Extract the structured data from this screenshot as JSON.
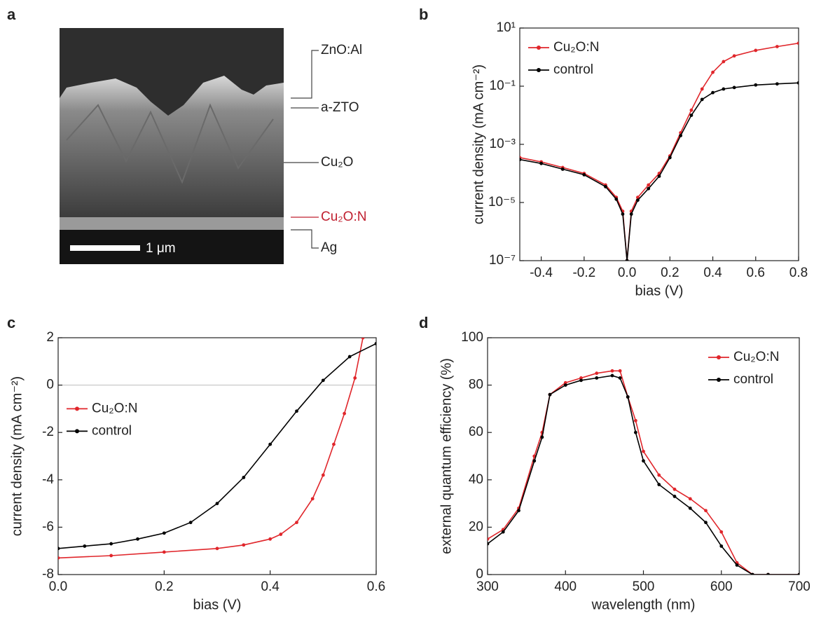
{
  "image_panel": {
    "label": "a",
    "scale_bar": "1 μm",
    "layers": [
      "ZnO:Al",
      "a-ZTO",
      "Cu₂O",
      "Cu₂O:N",
      "Ag"
    ]
  },
  "chart_data": [
    {
      "type": "line",
      "panel_label": "b",
      "x_label": "bias (V)",
      "y_label": "current density (mA cm⁻²)",
      "log_y": true,
      "legend": "upper left",
      "xlim": [
        -0.5,
        0.8
      ],
      "xticks": [
        -0.4,
        -0.2,
        {
          "value": 0,
          "label": "0.0"
        },
        0.2,
        0.4,
        0.6,
        0.8
      ],
      "ylim": [
        1e-07,
        10
      ],
      "yticks": [
        {
          "value": 10,
          "label": "10¹"
        },
        {
          "value": 0.1,
          "label": "10⁻¹"
        },
        {
          "value": 0.001,
          "label": "10⁻³"
        },
        {
          "value": 1e-05,
          "label": "10⁻⁵"
        },
        {
          "value": 1e-07,
          "label": "10⁻⁷"
        }
      ],
      "series": [
        {
          "name": "Cu₂O:N",
          "color": "#e0262b",
          "x": [
            -0.5,
            -0.4,
            -0.3,
            -0.2,
            -0.1,
            -0.05,
            -0.02,
            0,
            0.02,
            0.05,
            0.1,
            0.15,
            0.2,
            0.25,
            0.3,
            0.35,
            0.4,
            0.45,
            0.5,
            0.6,
            0.7,
            0.8
          ],
          "values": [
            0.00035,
            0.00025,
            0.00016,
            0.0001,
            4e-05,
            1.5e-05,
            5e-06,
            1e-07,
            5e-06,
            1.5e-05,
            4e-05,
            0.0001,
            0.0004,
            0.0025,
            0.015,
            0.08,
            0.3,
            0.7,
            1.1,
            1.7,
            2.3,
            3
          ]
        },
        {
          "name": "control",
          "color": "#000000",
          "x": [
            -0.5,
            -0.4,
            -0.3,
            -0.2,
            -0.1,
            -0.05,
            -0.02,
            0,
            0.02,
            0.05,
            0.1,
            0.15,
            0.2,
            0.25,
            0.3,
            0.35,
            0.4,
            0.45,
            0.5,
            0.6,
            0.7,
            0.8
          ],
          "values": [
            0.0003,
            0.00022,
            0.00014,
            9e-05,
            3.5e-05,
            1.3e-05,
            4e-06,
            1e-07,
            4e-06,
            1.2e-05,
            3e-05,
            8e-05,
            0.00035,
            0.002,
            0.01,
            0.035,
            0.06,
            0.08,
            0.09,
            0.11,
            0.12,
            0.13
          ]
        }
      ]
    },
    {
      "type": "line",
      "panel_label": "c",
      "x_label": "bias (V)",
      "y_label": "current density (mA cm⁻²)",
      "legend": "center left",
      "zero_line": true,
      "xlim": [
        0,
        0.6
      ],
      "xticks": [
        {
          "value": 0,
          "label": "0.0"
        },
        0.2,
        0.4,
        0.6
      ],
      "ylim": [
        -8,
        2
      ],
      "yticks": [
        -8,
        -6,
        -4,
        -2,
        0,
        2
      ],
      "series": [
        {
          "name": "Cu₂O:N",
          "color": "#e0262b",
          "x": [
            0,
            0.1,
            0.2,
            0.3,
            0.35,
            0.4,
            0.42,
            0.45,
            0.48,
            0.5,
            0.52,
            0.54,
            0.56,
            0.575
          ],
          "values": [
            -7.3,
            -7.2,
            -7.05,
            -6.9,
            -6.75,
            -6.5,
            -6.3,
            -5.8,
            -4.8,
            -3.8,
            -2.5,
            -1.2,
            0.3,
            2
          ]
        },
        {
          "name": "control",
          "color": "#000000",
          "x": [
            0,
            0.05,
            0.1,
            0.15,
            0.2,
            0.25,
            0.3,
            0.35,
            0.4,
            0.45,
            0.5,
            0.55,
            0.6
          ],
          "values": [
            -6.9,
            -6.8,
            -6.7,
            -6.5,
            -6.25,
            -5.8,
            -5,
            -3.9,
            -2.5,
            -1.1,
            0.2,
            1.2,
            1.75
          ]
        }
      ]
    },
    {
      "type": "line",
      "panel_label": "d",
      "x_label": "wavelength (nm)",
      "y_label": "external quantum efficiency (%)",
      "legend": "upper right",
      "xlim": [
        300,
        700
      ],
      "xticks": [
        300,
        400,
        500,
        600,
        700
      ],
      "ylim": [
        0,
        100
      ],
      "yticks": [
        0,
        20,
        40,
        60,
        80,
        100
      ],
      "series": [
        {
          "name": "Cu₂O:N",
          "color": "#e0262b",
          "x": [
            300,
            320,
            340,
            360,
            370,
            380,
            400,
            420,
            440,
            460,
            470,
            480,
            490,
            500,
            520,
            540,
            560,
            580,
            600,
            620,
            640,
            660,
            700
          ],
          "values": [
            15,
            19,
            28,
            50,
            60,
            76,
            81,
            83,
            85,
            86,
            86,
            75,
            65,
            52,
            42,
            36,
            32,
            27,
            18,
            5,
            0,
            0,
            0
          ]
        },
        {
          "name": "control",
          "color": "#000000",
          "x": [
            300,
            320,
            340,
            360,
            370,
            380,
            400,
            420,
            440,
            460,
            470,
            480,
            490,
            500,
            520,
            540,
            560,
            580,
            600,
            620,
            640,
            660,
            700
          ],
          "values": [
            13,
            18,
            27,
            48,
            58,
            76,
            80,
            82,
            83,
            84,
            83,
            75,
            60,
            48,
            38,
            33,
            28,
            22,
            12,
            4,
            0,
            0,
            0
          ]
        }
      ]
    }
  ]
}
